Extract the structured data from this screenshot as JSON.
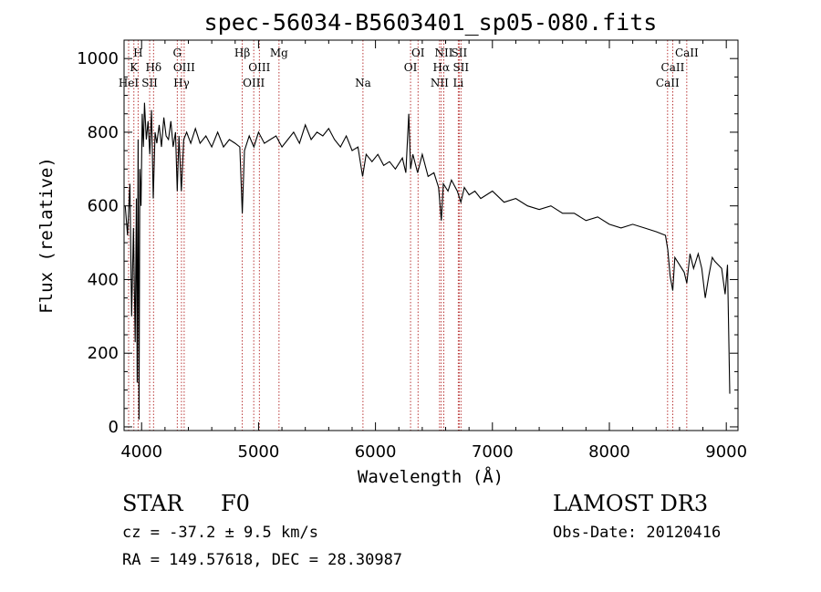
{
  "chart_data": {
    "type": "line",
    "title": "spec-56034-B5603401_sp05-080.fits",
    "xlabel": "Wavelength (Å)",
    "ylabel": "Flux (relative)",
    "xlim": [
      3850,
      9100
    ],
    "ylim": [
      -10,
      1050
    ],
    "xticks": [
      4000,
      5000,
      6000,
      7000,
      8000,
      9000
    ],
    "yticks": [
      0,
      200,
      400,
      600,
      800,
      1000
    ],
    "series": [
      {
        "name": "flux",
        "points": [
          [
            3860,
            600
          ],
          [
            3880,
            520
          ],
          [
            3900,
            660
          ],
          [
            3915,
            300
          ],
          [
            3930,
            540
          ],
          [
            3945,
            230
          ],
          [
            3955,
            620
          ],
          [
            3962,
            120
          ],
          [
            3970,
            780
          ],
          [
            3978,
            20
          ],
          [
            3985,
            700
          ],
          [
            3995,
            600
          ],
          [
            4005,
            850
          ],
          [
            4015,
            760
          ],
          [
            4025,
            880
          ],
          [
            4040,
            780
          ],
          [
            4055,
            830
          ],
          [
            4070,
            740
          ],
          [
            4085,
            860
          ],
          [
            4100,
            620
          ],
          [
            4115,
            800
          ],
          [
            4130,
            770
          ],
          [
            4150,
            820
          ],
          [
            4170,
            760
          ],
          [
            4190,
            840
          ],
          [
            4210,
            790
          ],
          [
            4230,
            780
          ],
          [
            4250,
            830
          ],
          [
            4270,
            760
          ],
          [
            4290,
            800
          ],
          [
            4305,
            640
          ],
          [
            4320,
            790
          ],
          [
            4340,
            640
          ],
          [
            4360,
            780
          ],
          [
            4385,
            800
          ],
          [
            4420,
            770
          ],
          [
            4460,
            810
          ],
          [
            4500,
            770
          ],
          [
            4550,
            790
          ],
          [
            4600,
            760
          ],
          [
            4650,
            800
          ],
          [
            4700,
            760
          ],
          [
            4750,
            780
          ],
          [
            4800,
            770
          ],
          [
            4840,
            760
          ],
          [
            4861,
            580
          ],
          [
            4880,
            750
          ],
          [
            4920,
            790
          ],
          [
            4960,
            760
          ],
          [
            5000,
            800
          ],
          [
            5050,
            770
          ],
          [
            5100,
            780
          ],
          [
            5150,
            790
          ],
          [
            5200,
            760
          ],
          [
            5250,
            780
          ],
          [
            5300,
            800
          ],
          [
            5350,
            770
          ],
          [
            5400,
            820
          ],
          [
            5450,
            780
          ],
          [
            5500,
            800
          ],
          [
            5550,
            790
          ],
          [
            5600,
            810
          ],
          [
            5650,
            780
          ],
          [
            5700,
            760
          ],
          [
            5750,
            790
          ],
          [
            5800,
            750
          ],
          [
            5850,
            760
          ],
          [
            5890,
            680
          ],
          [
            5920,
            740
          ],
          [
            5970,
            720
          ],
          [
            6020,
            740
          ],
          [
            6070,
            710
          ],
          [
            6120,
            720
          ],
          [
            6170,
            700
          ],
          [
            6230,
            730
          ],
          [
            6260,
            690
          ],
          [
            6285,
            850
          ],
          [
            6300,
            700
          ],
          [
            6320,
            740
          ],
          [
            6360,
            690
          ],
          [
            6400,
            740
          ],
          [
            6450,
            680
          ],
          [
            6500,
            690
          ],
          [
            6540,
            650
          ],
          [
            6563,
            560
          ],
          [
            6580,
            660
          ],
          [
            6620,
            640
          ],
          [
            6650,
            670
          ],
          [
            6700,
            640
          ],
          [
            6730,
            610
          ],
          [
            6760,
            650
          ],
          [
            6800,
            630
          ],
          [
            6850,
            640
          ],
          [
            6900,
            620
          ],
          [
            7000,
            640
          ],
          [
            7100,
            610
          ],
          [
            7200,
            620
          ],
          [
            7300,
            600
          ],
          [
            7400,
            590
          ],
          [
            7500,
            600
          ],
          [
            7600,
            580
          ],
          [
            7700,
            580
          ],
          [
            7800,
            560
          ],
          [
            7900,
            570
          ],
          [
            8000,
            550
          ],
          [
            8100,
            540
          ],
          [
            8200,
            550
          ],
          [
            8300,
            540
          ],
          [
            8400,
            530
          ],
          [
            8480,
            520
          ],
          [
            8500,
            480
          ],
          [
            8520,
            410
          ],
          [
            8542,
            370
          ],
          [
            8560,
            460
          ],
          [
            8600,
            440
          ],
          [
            8640,
            420
          ],
          [
            8662,
            390
          ],
          [
            8690,
            470
          ],
          [
            8720,
            430
          ],
          [
            8760,
            470
          ],
          [
            8790,
            430
          ],
          [
            8820,
            350
          ],
          [
            8850,
            410
          ],
          [
            8880,
            460
          ],
          [
            8900,
            450
          ],
          [
            8960,
            430
          ],
          [
            8990,
            360
          ],
          [
            9010,
            440
          ],
          [
            9030,
            90
          ]
        ]
      }
    ],
    "spectral_lines": [
      {
        "label": "H",
        "wave": 3970,
        "row": 1
      },
      {
        "label": "K",
        "wave": 3934,
        "row": 2
      },
      {
        "label": "HeI",
        "wave": 3889,
        "row": 3
      },
      {
        "label": "Hδ",
        "wave": 4102,
        "row": 2
      },
      {
        "label": "SII",
        "wave": 4069,
        "row": 3
      },
      {
        "label": "G",
        "wave": 4305,
        "row": 1
      },
      {
        "label": "OIII",
        "wave": 4364,
        "row": 2
      },
      {
        "label": "Hγ",
        "wave": 4341,
        "row": 3
      },
      {
        "label": "Hβ",
        "wave": 4861,
        "row": 1
      },
      {
        "label": "OIII",
        "wave": 5007,
        "row": 2
      },
      {
        "label": "OIII",
        "wave": 4959,
        "row": 3
      },
      {
        "label": "Mg",
        "wave": 5175,
        "row": 1
      },
      {
        "label": "Na",
        "wave": 5893,
        "row": 3
      },
      {
        "label": "OI",
        "wave": 6364,
        "row": 1
      },
      {
        "label": "OI",
        "wave": 6300,
        "row": 2
      },
      {
        "label": "NII",
        "wave": 6584,
        "row": 1
      },
      {
        "label": "SII",
        "wave": 6716,
        "row": 1
      },
      {
        "label": "Hα",
        "wave": 6563,
        "row": 2
      },
      {
        "label": "SII",
        "wave": 6731,
        "row": 2
      },
      {
        "label": "NII",
        "wave": 6548,
        "row": 3
      },
      {
        "label": "Li",
        "wave": 6708,
        "row": 3
      },
      {
        "label": "CaII",
        "wave": 8662,
        "row": 1
      },
      {
        "label": "CaII",
        "wave": 8542,
        "row": 2
      },
      {
        "label": "CaII",
        "wave": 8498,
        "row": 3
      }
    ]
  },
  "info": {
    "object_class": "STAR",
    "subclass": "F0",
    "survey": "LAMOST DR3",
    "cz": "cz = -37.2 ± 9.5 km/s",
    "obs_date": "Obs-Date: 20120416",
    "coords": "RA = 149.57618, DEC =  28.30987"
  },
  "colors": {
    "flux_line": "#000000",
    "marker_line": "#b22222",
    "axes": "#000000"
  }
}
